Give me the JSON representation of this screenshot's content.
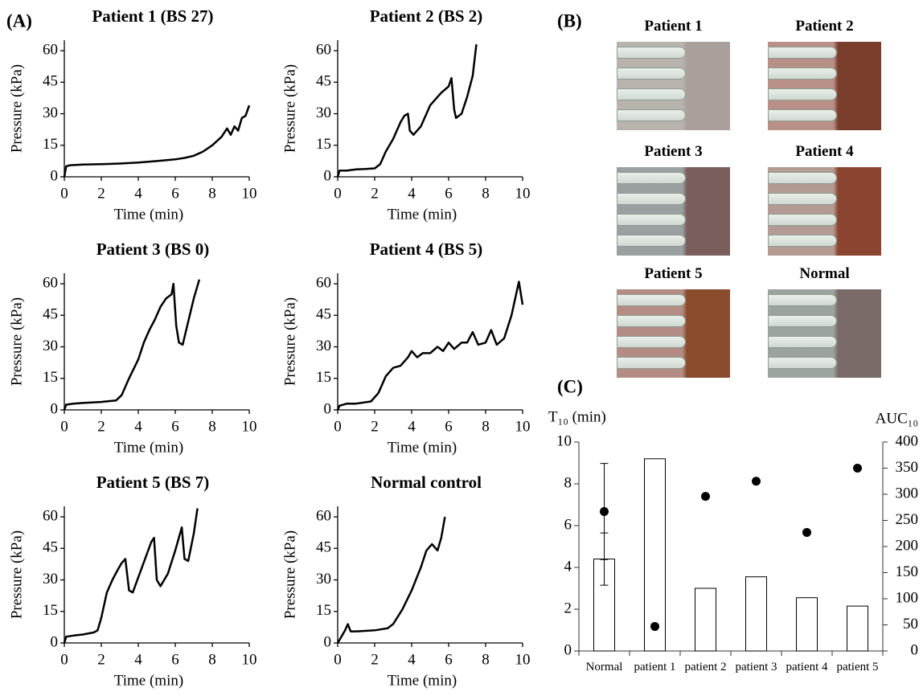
{
  "panel_labels": [
    "(A)",
    "(B)",
    "(C)"
  ],
  "photos": [
    {
      "title": "Patient 1"
    },
    {
      "title": "Patient 2"
    },
    {
      "title": "Patient 3"
    },
    {
      "title": "Patient 4"
    },
    {
      "title": "Patient 5"
    },
    {
      "title": "Normal"
    }
  ],
  "chart_data": [
    {
      "type": "line",
      "title": "Patient 1 (BS 27)",
      "x_label": "Time (min)",
      "y_label": "Pressure (kPa)",
      "x": [
        0,
        0.1,
        0.3,
        1,
        2,
        3,
        4,
        5,
        6,
        6.5,
        7,
        7.5,
        8,
        8.5,
        8.8,
        9,
        9.2,
        9.4,
        9.6,
        9.8,
        10
      ],
      "series": [
        {
          "color": "#000000",
          "values": [
            0,
            5,
            5.5,
            5.8,
            6,
            6.3,
            6.8,
            7.5,
            8.3,
            9,
            10,
            12,
            15,
            19,
            23,
            20,
            24,
            22,
            28,
            29,
            34
          ]
        }
      ],
      "xlim": [
        0,
        10
      ],
      "xticks": [
        0,
        2,
        4,
        6,
        8,
        10
      ],
      "ylim": [
        0,
        65
      ],
      "yticks": [
        0,
        15,
        30,
        45,
        60
      ]
    },
    {
      "type": "line",
      "title": "Patient 2 (BS 2)",
      "x_label": "Time (min)",
      "y_label": "Pressure (kPa)",
      "x": [
        0,
        0.1,
        0.5,
        1,
        1.5,
        2,
        2.3,
        2.6,
        3,
        3.4,
        3.6,
        3.8,
        3.9,
        4.1,
        4.5,
        5,
        5.3,
        5.6,
        6,
        6.15,
        6.3,
        6.4,
        6.7,
        7,
        7.3,
        7.5
      ],
      "series": [
        {
          "color": "#000000",
          "values": [
            0,
            3,
            3,
            3.5,
            3.7,
            4,
            6,
            12,
            18,
            26,
            29,
            30,
            22,
            20,
            24,
            34,
            37,
            40,
            43,
            47,
            32,
            28,
            30,
            38,
            48,
            63
          ]
        }
      ],
      "xlim": [
        0,
        10
      ],
      "xticks": [
        0,
        2,
        4,
        6,
        8,
        10
      ],
      "ylim": [
        0,
        65
      ],
      "yticks": [
        0,
        15,
        30,
        45,
        60
      ]
    },
    {
      "type": "line",
      "title": "Patient 3 (BS 0)",
      "x_label": "Time (min)",
      "y_label": "Pressure (kPa)",
      "x": [
        0,
        0.1,
        0.5,
        1,
        2,
        2.8,
        3.1,
        3.5,
        4,
        4.3,
        4.6,
        4.9,
        5.2,
        5.5,
        5.8,
        5.9,
        6.05,
        6.2,
        6.4,
        6.7,
        7,
        7.3
      ],
      "series": [
        {
          "color": "#000000",
          "values": [
            0,
            2.5,
            3,
            3.3,
            3.8,
            4.5,
            7,
            15,
            24,
            32,
            38,
            43,
            49,
            53,
            55,
            60,
            40,
            32,
            31,
            42,
            53,
            62
          ]
        }
      ],
      "xlim": [
        0,
        10
      ],
      "xticks": [
        0,
        2,
        4,
        6,
        8,
        10
      ],
      "ylim": [
        0,
        65
      ],
      "yticks": [
        0,
        15,
        30,
        45,
        60
      ]
    },
    {
      "type": "line",
      "title": "Patient 4 (BS 5)",
      "x_label": "Time (min)",
      "y_label": "Pressure (kPa)",
      "x": [
        0,
        0.1,
        0.5,
        1,
        1.8,
        2.2,
        2.6,
        3,
        3.4,
        3.8,
        4,
        4.3,
        4.6,
        5,
        5.4,
        5.7,
        6,
        6.3,
        6.7,
        7,
        7.3,
        7.6,
        8,
        8.3,
        8.6,
        9,
        9.4,
        9.8,
        10
      ],
      "series": [
        {
          "color": "#000000",
          "values": [
            0,
            2,
            3,
            3,
            4,
            8,
            16,
            20,
            21,
            25,
            28,
            25,
            27,
            27,
            30,
            28,
            32,
            29,
            32,
            32,
            37,
            31,
            32,
            38,
            31,
            34,
            45,
            61,
            50
          ]
        }
      ],
      "xlim": [
        0,
        10
      ],
      "xticks": [
        0,
        2,
        4,
        6,
        8,
        10
      ],
      "ylim": [
        0,
        65
      ],
      "yticks": [
        0,
        15,
        30,
        45,
        60
      ]
    },
    {
      "type": "line",
      "title": "Patient 5 (BS 7)",
      "x_label": "Time (min)",
      "y_label": "Pressure (kPa)",
      "x": [
        0,
        0.1,
        0.5,
        1,
        1.6,
        1.8,
        2,
        2.3,
        2.6,
        2.9,
        3.1,
        3.3,
        3.5,
        3.7,
        4.2,
        4.7,
        4.85,
        5,
        5.2,
        5.6,
        6,
        6.35,
        6.5,
        6.7,
        7,
        7.2
      ],
      "series": [
        {
          "color": "#000000",
          "values": [
            0,
            3,
            3.5,
            4,
            5,
            6,
            12,
            24,
            30,
            35,
            38,
            40,
            25,
            24,
            36,
            48,
            50,
            30,
            27,
            33,
            44,
            55,
            40,
            39,
            52,
            64
          ]
        }
      ],
      "xlim": [
        0,
        10
      ],
      "xticks": [
        0,
        2,
        4,
        6,
        8,
        10
      ],
      "ylim": [
        0,
        65
      ],
      "yticks": [
        0,
        15,
        30,
        45,
        60
      ]
    },
    {
      "type": "line",
      "title": "Normal control",
      "x_label": "Time (min)",
      "y_label": "Pressure (kPa)",
      "x": [
        0,
        0.2,
        0.4,
        0.55,
        0.7,
        1,
        2,
        2.7,
        3,
        3.5,
        4,
        4.5,
        4.8,
        5.1,
        5.4,
        5.6,
        5.8
      ],
      "series": [
        {
          "color": "#000000",
          "values": [
            0,
            3,
            6,
            9,
            5.5,
            5.5,
            6,
            7,
            9,
            16,
            25,
            36,
            44,
            47,
            44,
            50,
            60
          ]
        }
      ],
      "xlim": [
        0,
        10
      ],
      "xticks": [
        0,
        2,
        4,
        6,
        8,
        10
      ],
      "ylim": [
        0,
        65
      ],
      "yticks": [
        0,
        15,
        30,
        45,
        60
      ]
    },
    {
      "type": "bar_scatter",
      "y_label": "T₁₀ (min)",
      "y2_label": "AUC₁₀",
      "categories": [
        "Normal",
        "patient 1",
        "patient 2",
        "patient 3",
        "patient 4",
        "patient 5"
      ],
      "series": [
        {
          "type": "bar",
          "color": "#ffffff",
          "values": [
            4.4,
            9.2,
            3.0,
            3.55,
            2.55,
            2.15
          ],
          "errors": [
            1.25,
            null,
            null,
            null,
            null,
            null
          ]
        },
        {
          "type": "scatter",
          "axis": "y2",
          "color": "#000000",
          "values": [
            267,
            47,
            296,
            325,
            227,
            350
          ],
          "errors": [
            92,
            null,
            null,
            null,
            null,
            null
          ]
        }
      ],
      "ylim": [
        0,
        10
      ],
      "yticks": [
        0,
        2,
        4,
        6,
        8,
        10
      ],
      "y2lim": [
        0,
        400
      ],
      "y2ticks": [
        0,
        50,
        100,
        150,
        200,
        250,
        300,
        350,
        400
      ]
    }
  ]
}
